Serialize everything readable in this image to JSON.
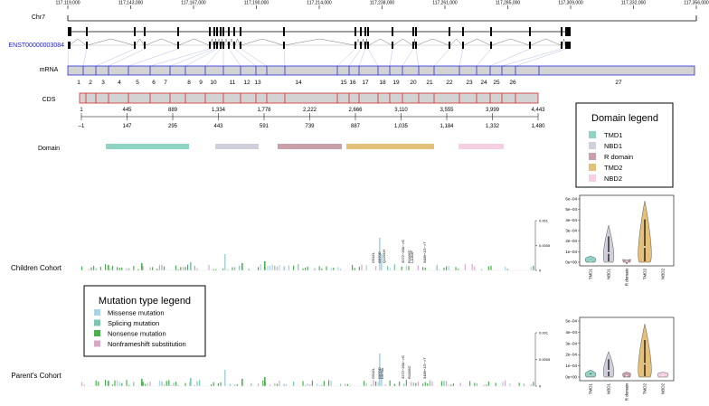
{
  "genome": {
    "ticks": [
      "117,119,000",
      "117,143,000",
      "117,167,000",
      "117,190,000",
      "117,214,000",
      "117,238,000",
      "117,261,000",
      "117,285,000",
      "117,309,000",
      "117,332,000",
      "117,356,000"
    ],
    "chr_label": "Chr7",
    "transcript_label": "ENST00000003084"
  },
  "mrna": {
    "label": "mRNA",
    "exons": [
      "1",
      "2",
      "3",
      "4",
      "5",
      "6",
      "7",
      "8",
      "9",
      "10",
      "11",
      "12",
      "13",
      "14",
      "15",
      "16",
      "17",
      "18",
      "19",
      "20",
      "21",
      "22",
      "23",
      "24",
      "25",
      "26",
      "27"
    ]
  },
  "cds": {
    "label": "CDS",
    "nt_ticks": [
      "1",
      "445",
      "889",
      "1,334",
      "1,778",
      "2,222",
      "2,666",
      "3,110",
      "3,555",
      "3,999",
      "4,443"
    ],
    "aa_ticks": [
      "–1",
      "147",
      "295",
      "443",
      "591",
      "739",
      "887",
      "1,035",
      "1,184",
      "1,332",
      "1,480"
    ]
  },
  "domain_track": {
    "label": "Domain"
  },
  "domain_legend": {
    "title": "Domain legend",
    "items": [
      {
        "name": "TMD1",
        "color": "#8fd3c5"
      },
      {
        "name": "NBD1",
        "color": "#d0d0dc"
      },
      {
        "name": "R domain",
        "color": "#c9a0aa"
      },
      {
        "name": "TMD2",
        "color": "#e5c07b"
      },
      {
        "name": "NBD2",
        "color": "#f7cfe3"
      }
    ]
  },
  "mutation_legend": {
    "title": "Mutation type legend",
    "items": [
      {
        "name": "Missense mutation",
        "color": "#a8d4e6"
      },
      {
        "name": "Splicing mutation",
        "color": "#7fc4b0"
      },
      {
        "name": "Nonsense mutation",
        "color": "#4caf50"
      },
      {
        "name": "Nonframeshift substitution",
        "color": "#d8a8c8"
      }
    ]
  },
  "children": {
    "label": "Children Cohort",
    "yticks": [
      "0.001",
      "0.0005",
      "0"
    ],
    "mutation_labels": [
      "G542L",
      "G970D",
      "Q1291H",
      "3272−26A−>G",
      "R1066C",
      "L1093P",
      "3489+1G−>T"
    ]
  },
  "parents": {
    "label": "Parent's Cohort",
    "yticks": [
      "0.001",
      "0.0005",
      "0"
    ],
    "mutation_labels": [
      "G542L",
      "G970D",
      "D979A",
      "3272−26A−>G",
      "R1066C",
      "3489+1G−>T"
    ]
  },
  "violin_children": {
    "yticks": [
      "6e−04",
      "5e−04",
      "4e−04",
      "3e−04",
      "2e−04",
      "1e−04",
      "0e+00"
    ],
    "categories": [
      "TMD1",
      "NBD1",
      "R domain",
      "TMD2",
      "NBD2"
    ],
    "levels": [
      6e-05,
      0.00035,
      2e-05,
      0.00058,
      0.0
    ]
  },
  "violin_parents": {
    "yticks": [
      "5e−04",
      "4e−04",
      "3e−04",
      "2e−04",
      "1e−04",
      "0e+00"
    ],
    "categories": [
      "TMD1",
      "NBD1",
      "R domain",
      "TMD2",
      "NBD2"
    ],
    "levels": [
      7e-05,
      0.00025,
      5e-05,
      0.00052,
      5e-05
    ]
  }
}
